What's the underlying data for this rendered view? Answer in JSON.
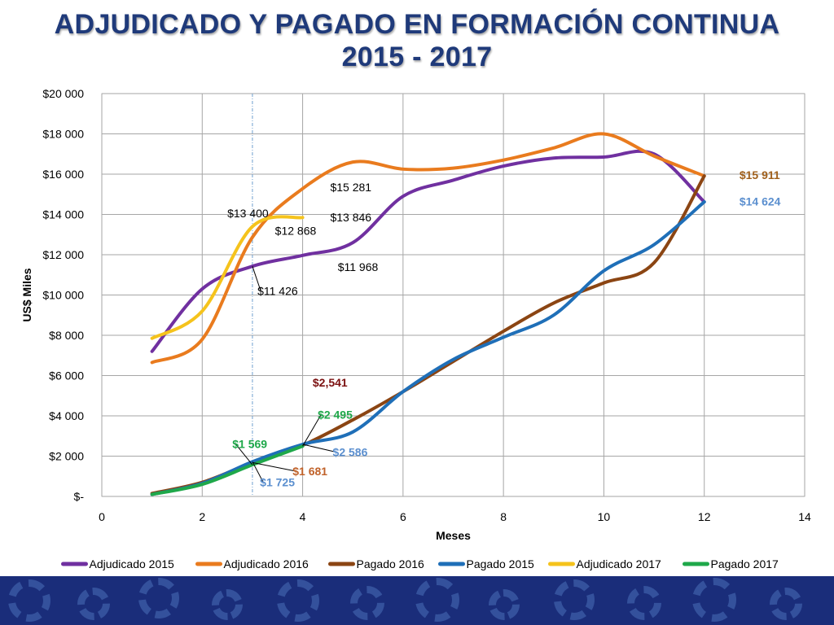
{
  "title_line1": "ADJUDICADO Y PAGADO EN FORMACIÓN CONTINUA",
  "title_line2": "2015 - 2017",
  "chart_data": {
    "type": "line",
    "xlabel": "Meses",
    "ylabel": "US$ Miles",
    "xlim": [
      0,
      14
    ],
    "ylim": [
      0,
      20000
    ],
    "x_ticks": [
      "0",
      "2",
      "4",
      "6",
      "8",
      "10",
      "12",
      "14"
    ],
    "y_ticks": [
      "$-",
      "$2 000",
      "$4 000",
      "$6 000",
      "$8 000",
      "$10 000",
      "$12 000",
      "$14 000",
      "$16 000",
      "$18 000",
      "$20 000"
    ],
    "grid": true,
    "legend_position": "bottom",
    "series": [
      {
        "name": "Adjudicado 2015",
        "color": "#7030a0",
        "points": [
          [
            1,
            7200
          ],
          [
            2,
            10300
          ],
          [
            3,
            11426
          ],
          [
            4,
            11968
          ],
          [
            5,
            12600
          ],
          [
            6,
            14900
          ],
          [
            7,
            15700
          ],
          [
            8,
            16400
          ],
          [
            9,
            16800
          ],
          [
            10,
            16850
          ],
          [
            11,
            17000
          ],
          [
            12,
            14624
          ]
        ]
      },
      {
        "name": "Adjudicado 2016",
        "color": "#e97b1e",
        "points": [
          [
            1,
            6650
          ],
          [
            2,
            7800
          ],
          [
            3,
            12868
          ],
          [
            4,
            15281
          ],
          [
            5,
            16600
          ],
          [
            6,
            16250
          ],
          [
            7,
            16300
          ],
          [
            8,
            16700
          ],
          [
            9,
            17300
          ],
          [
            10,
            18000
          ],
          [
            11,
            16900
          ],
          [
            12,
            15911
          ]
        ]
      },
      {
        "name": "Pagado 2016",
        "color": "#8b4513",
        "points": [
          [
            1,
            150
          ],
          [
            2,
            700
          ],
          [
            3,
            1681
          ],
          [
            4,
            2541
          ],
          [
            5,
            3800
          ],
          [
            6,
            5200
          ],
          [
            7,
            6700
          ],
          [
            8,
            8200
          ],
          [
            9,
            9600
          ],
          [
            10,
            10600
          ],
          [
            11,
            11600
          ],
          [
            12,
            15911
          ]
        ]
      },
      {
        "name": "Pagado 2015",
        "color": "#1f6fb8",
        "points": [
          [
            1,
            100
          ],
          [
            2,
            650
          ],
          [
            3,
            1725
          ],
          [
            4,
            2586
          ],
          [
            5,
            3200
          ],
          [
            6,
            5200
          ],
          [
            7,
            6800
          ],
          [
            8,
            7900
          ],
          [
            9,
            9000
          ],
          [
            10,
            11200
          ],
          [
            11,
            12500
          ],
          [
            12,
            14624
          ]
        ]
      },
      {
        "name": "Adjudicado 2017",
        "color": "#f5c31c",
        "points": [
          [
            1,
            7850
          ],
          [
            2,
            9200
          ],
          [
            3,
            13400
          ],
          [
            4,
            13846
          ]
        ]
      },
      {
        "name": "Pagado 2017",
        "color": "#1fa84a",
        "points": [
          [
            1,
            100
          ],
          [
            2,
            600
          ],
          [
            3,
            1569
          ],
          [
            4,
            2495
          ]
        ]
      }
    ],
    "annotations": [
      {
        "text": "$11 426",
        "color": "#000000",
        "bold": false,
        "x": 3,
        "y": 11426,
        "tx": 3.1,
        "ty": 10000,
        "leader": true
      },
      {
        "text": "$11 968",
        "color": "#000000",
        "bold": false,
        "x": 4,
        "y": 11968,
        "tx": 4.7,
        "ty": 11200,
        "leader": false
      },
      {
        "text": "$12 868",
        "color": "#000000",
        "bold": false,
        "x": 3,
        "y": 12868,
        "tx": 3.45,
        "ty": 13000,
        "leader": false
      },
      {
        "text": "$13 400",
        "color": "#000000",
        "bold": false,
        "x": 3,
        "y": 13400,
        "tx": 2.5,
        "ty": 13850,
        "leader": false
      },
      {
        "text": "$13 846",
        "color": "#000000",
        "bold": false,
        "x": 4,
        "y": 13846,
        "tx": 4.55,
        "ty": 13650,
        "leader": false
      },
      {
        "text": "$15 281",
        "color": "#000000",
        "bold": false,
        "x": 4,
        "y": 15281,
        "tx": 4.55,
        "ty": 15150,
        "leader": false
      },
      {
        "text": "$2,541",
        "color": "#7b1010",
        "bold": true,
        "x": 4,
        "y": 2541,
        "tx": 4.2,
        "ty": 5450,
        "leader": false
      },
      {
        "text": "$2 495",
        "color": "#1fa84a",
        "bold": true,
        "x": 4,
        "y": 2495,
        "tx": 4.3,
        "ty": 3850,
        "leader": true
      },
      {
        "text": "$2 586",
        "color": "#5b8fcf",
        "bold": true,
        "x": 4,
        "y": 2586,
        "tx": 4.6,
        "ty": 2000,
        "leader": true
      },
      {
        "text": "$1 569",
        "color": "#1fa84a",
        "bold": true,
        "x": 3,
        "y": 1569,
        "tx": 2.6,
        "ty": 2400,
        "leader": true
      },
      {
        "text": "$1 681",
        "color": "#c0622a",
        "bold": true,
        "x": 3,
        "y": 1681,
        "tx": 3.8,
        "ty": 1050,
        "leader": true
      },
      {
        "text": "$1 725",
        "color": "#5b8fcf",
        "bold": true,
        "x": 3,
        "y": 1725,
        "tx": 3.15,
        "ty": 500,
        "leader": true
      },
      {
        "text": "$15 911",
        "color": "#a0601c",
        "bold": true,
        "x": 12,
        "y": 15911,
        "tx": 12.7,
        "ty": 15750,
        "leader": false
      },
      {
        "text": "$14 624",
        "color": "#5b8fcf",
        "bold": true,
        "x": 12,
        "y": 14624,
        "tx": 12.7,
        "ty": 14450,
        "leader": false
      }
    ],
    "reference_line_x": 3
  }
}
